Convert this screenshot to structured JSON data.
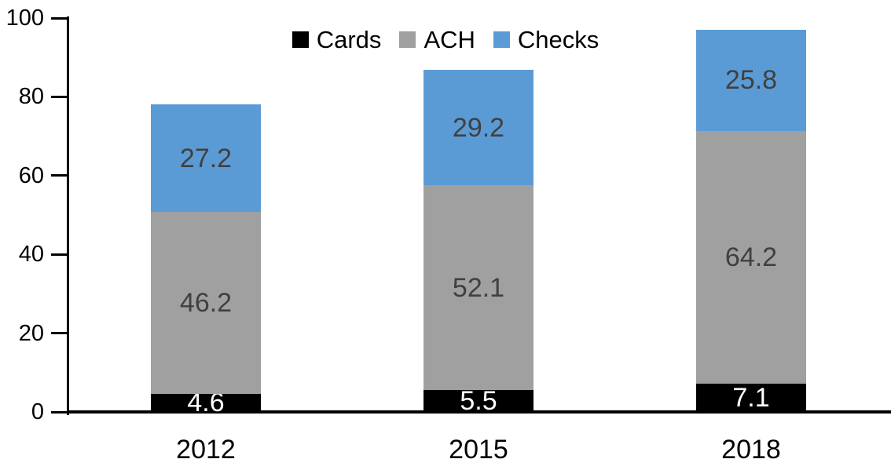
{
  "chart_data": {
    "type": "bar",
    "stacked": true,
    "title": "",
    "xlabel": "",
    "ylabel": "",
    "categories": [
      "2012",
      "2015",
      "2018"
    ],
    "series": [
      {
        "name": "Cards",
        "values": [
          4.6,
          5.5,
          7.1
        ],
        "color": "#000000",
        "label_color": "#FFFFFF"
      },
      {
        "name": "ACH",
        "values": [
          46.2,
          52.1,
          64.2
        ],
        "color": "#A0A0A0",
        "label_color": "#404040"
      },
      {
        "name": "Checks",
        "values": [
          27.2,
          29.2,
          25.8
        ],
        "color": "#5B9BD5",
        "label_color": "#404040"
      }
    ],
    "totals": [
      78.0,
      86.8,
      97.1
    ],
    "y_axis": {
      "min": 0,
      "max": 100,
      "tick_interval": 20,
      "ticks": [
        0,
        20,
        40,
        60,
        80,
        100
      ]
    },
    "legend": {
      "position": "top-center",
      "entries": [
        "Cards",
        "ACH",
        "Checks"
      ]
    },
    "grid": false,
    "data_labels": true,
    "axis_color": "#000000"
  }
}
